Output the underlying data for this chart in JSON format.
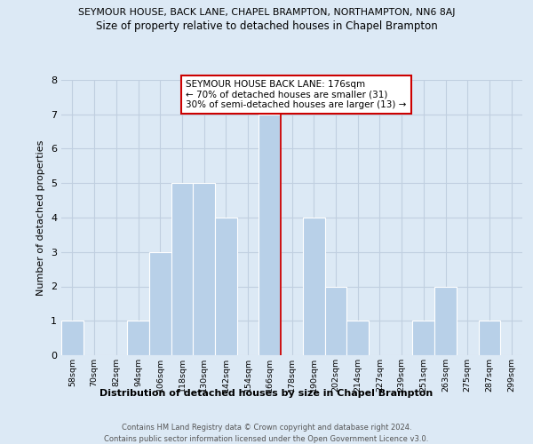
{
  "title_top": "SEYMOUR HOUSE, BACK LANE, CHAPEL BRAMPTON, NORTHAMPTON, NN6 8AJ",
  "title_main": "Size of property relative to detached houses in Chapel Brampton",
  "xlabel": "Distribution of detached houses by size in Chapel Brampton",
  "ylabel": "Number of detached properties",
  "bin_labels": [
    "58sqm",
    "70sqm",
    "82sqm",
    "94sqm",
    "106sqm",
    "118sqm",
    "130sqm",
    "142sqm",
    "154sqm",
    "166sqm",
    "178sqm",
    "190sqm",
    "202sqm",
    "214sqm",
    "227sqm",
    "239sqm",
    "251sqm",
    "263sqm",
    "275sqm",
    "287sqm",
    "299sqm"
  ],
  "bar_heights": [
    1,
    0,
    0,
    1,
    3,
    5,
    5,
    4,
    0,
    7,
    0,
    4,
    2,
    1,
    0,
    0,
    1,
    2,
    0,
    1,
    0
  ],
  "bar_color": "#b8d0e8",
  "bar_edge_color": "#ffffff",
  "grid_color": "#c0cfe0",
  "annotation_line_color": "#cc0000",
  "annotation_box_text": "SEYMOUR HOUSE BACK LANE: 176sqm\n← 70% of detached houses are smaller (31)\n30% of semi-detached houses are larger (13) →",
  "ylim": [
    0,
    8
  ],
  "yticks": [
    0,
    1,
    2,
    3,
    4,
    5,
    6,
    7,
    8
  ],
  "footer_text": "Contains HM Land Registry data © Crown copyright and database right 2024.\nContains public sector information licensed under the Open Government Licence v3.0.",
  "background_color": "#dce9f5",
  "plot_bg_color": "#dce9f5"
}
